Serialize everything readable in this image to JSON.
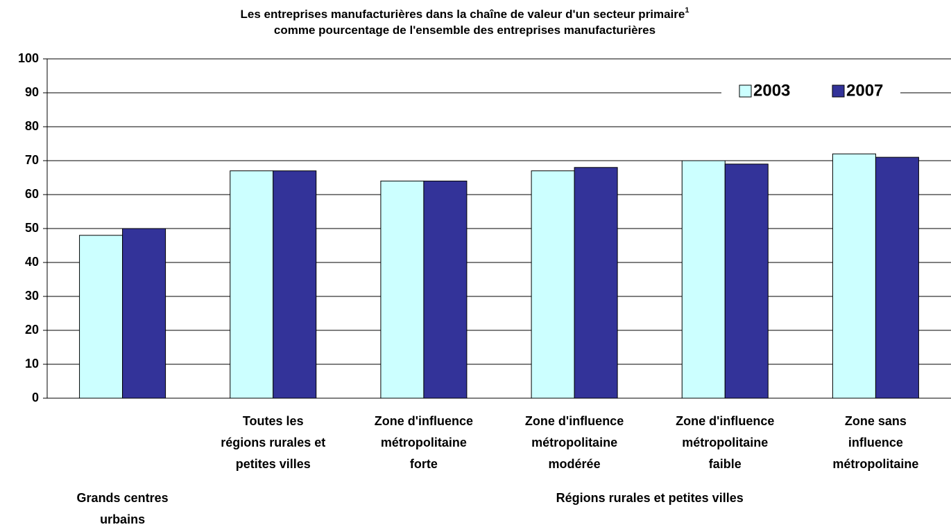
{
  "chart_data": {
    "type": "bar",
    "title": [
      "Les entreprises manufacturières dans la chaîne de valeur d'un secteur primaire",
      "comme pourcentage de l'ensemble des entreprises manufacturières"
    ],
    "title_footnote_marker": "1",
    "categories": [
      [
        "Grands centres",
        "urbains"
      ],
      [
        "Toutes les",
        "régions rurales et",
        "petites villes"
      ],
      [
        "Zone d'influence",
        "métropolitaine",
        "forte"
      ],
      [
        "Zone d'influence",
        "métropolitaine",
        "modérée"
      ],
      [
        "Zone d'influence",
        "métropolitaine",
        "faible"
      ],
      [
        "Zone sans",
        "influence",
        "métropolitaine"
      ]
    ],
    "group_label": "Régions rurales et petites villes",
    "series": [
      {
        "name": "2003",
        "color": "#ccffff",
        "values": [
          48,
          67,
          64,
          67,
          70,
          72
        ]
      },
      {
        "name": "2007",
        "color": "#333399",
        "values": [
          50,
          67,
          64,
          68,
          69,
          71
        ]
      }
    ],
    "ylim": [
      0,
      100
    ],
    "yticks": [
      0,
      10,
      20,
      30,
      40,
      50,
      60,
      70,
      80,
      90,
      100
    ],
    "grid": true,
    "legend": "top-right"
  }
}
